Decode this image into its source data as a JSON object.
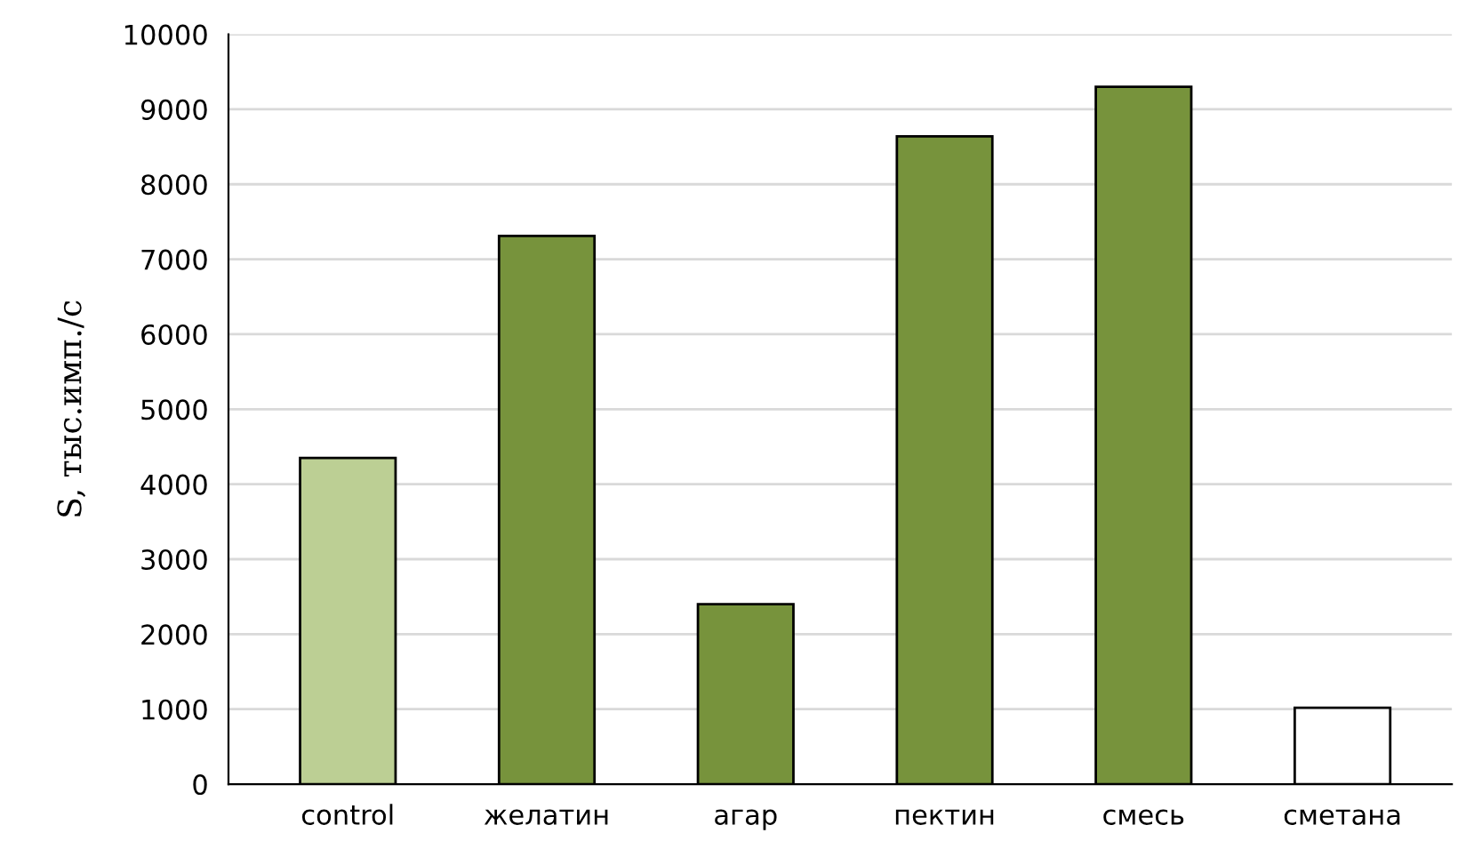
{
  "chart_data": {
    "type": "bar",
    "ylabel": "S, тыс.имп./с",
    "categories": [
      "control",
      "желатин",
      "агар",
      "пектин",
      "смесь",
      "сметана"
    ],
    "values": [
      4350,
      7310,
      2400,
      8640,
      9300,
      1020
    ],
    "colors": [
      "#bccf94",
      "#77933c",
      "#77933c",
      "#77933c",
      "#77933c",
      "#ffffff"
    ],
    "ylim": [
      0,
      10000
    ],
    "yticks": [
      0,
      1000,
      2000,
      3000,
      4000,
      5000,
      6000,
      7000,
      8000,
      9000,
      10000
    ],
    "grid": "y",
    "legend": false
  }
}
